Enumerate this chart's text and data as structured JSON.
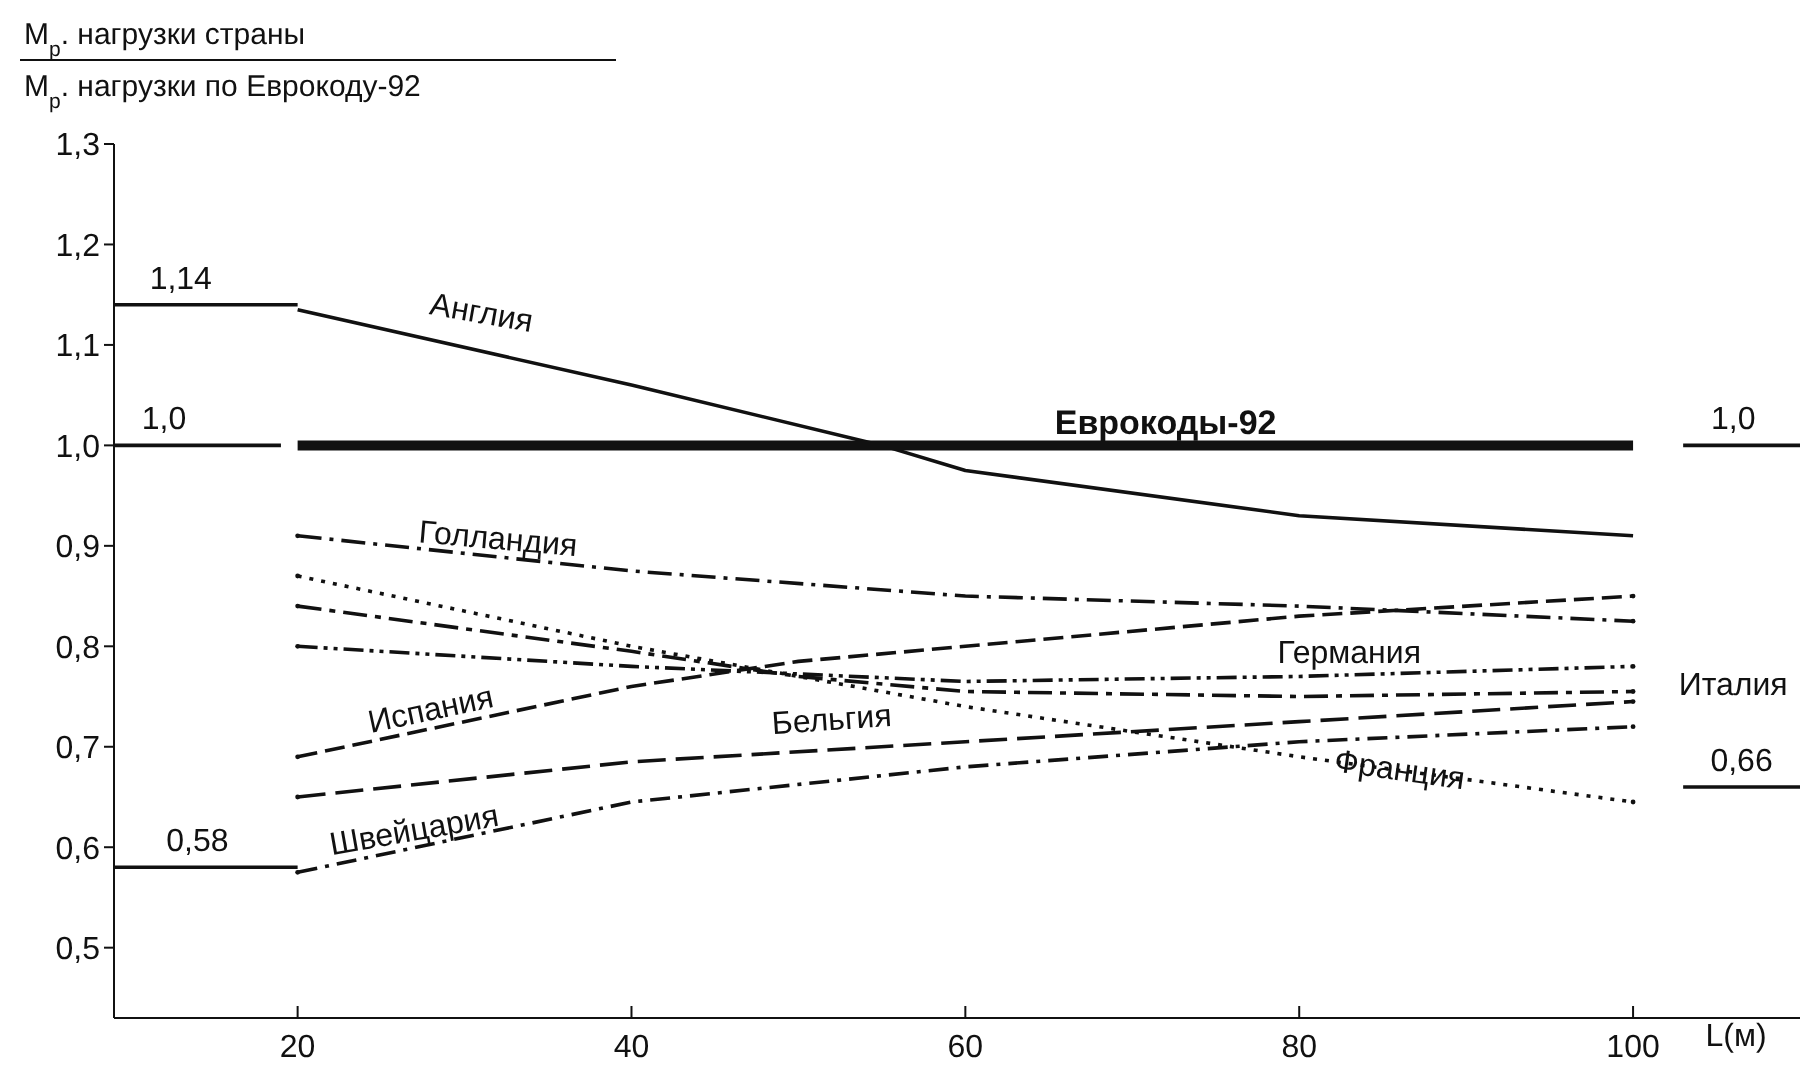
{
  "chart_data": {
    "type": "line",
    "title": "M$_{р}$. нагрузки страны",
    "subtitle": "M$_{р}$. нагрузки по Еврокоду-92",
    "xlabel": "L(м)",
    "xlim": [
      9,
      110
    ],
    "xticks": [
      20,
      40,
      60,
      80,
      100
    ],
    "ylim": [
      0.43,
      1.3
    ],
    "yticks": [
      {
        "value": 0.5,
        "label": "0,5"
      },
      {
        "value": 0.6,
        "label": "0,6"
      },
      {
        "value": 0.7,
        "label": "0,7"
      },
      {
        "value": 0.8,
        "label": "0,8"
      },
      {
        "value": 0.9,
        "label": "0,9"
      },
      {
        "value": 1.0,
        "label": "1,0"
      },
      {
        "value": 1.1,
        "label": "1,1"
      },
      {
        "value": 1.2,
        "label": "1,2"
      },
      {
        "value": 1.3,
        "label": "1,3"
      }
    ],
    "marker": "none",
    "series": [
      {
        "name": "Англия",
        "color": "#111111",
        "line_style": "solid",
        "x": [
          20,
          40,
          55,
          60,
          80,
          100
        ],
        "values": [
          1.135,
          1.06,
          1.0,
          0.975,
          0.93,
          0.91
        ]
      },
      {
        "name": "Еврокоды-92",
        "color": "#111111",
        "line_style": "solid",
        "x": [
          20,
          100
        ],
        "values": [
          1.0,
          1.0
        ]
      },
      {
        "name": "Голландия",
        "color": "#111111",
        "line_style": "dashed",
        "x": [
          20,
          40,
          60,
          80,
          100
        ],
        "values": [
          0.91,
          0.875,
          0.85,
          0.84,
          0.825
        ]
      },
      {
        "name": "Испания",
        "color": "#111111",
        "line_style": "dashed",
        "x": [
          20,
          40,
          50,
          60,
          80,
          100
        ],
        "values": [
          0.69,
          0.76,
          0.785,
          0.8,
          0.83,
          0.85
        ]
      },
      {
        "name": "Германия",
        "color": "#111111",
        "line_style": "dashed",
        "x": [
          20,
          40,
          60,
          80,
          100
        ],
        "values": [
          0.8,
          0.78,
          0.765,
          0.77,
          0.78
        ]
      },
      {
        "name": "Италия",
        "color": "#111111",
        "line_style": "dashed",
        "x": [
          20,
          40,
          50,
          60,
          80,
          100
        ],
        "values": [
          0.84,
          0.795,
          0.77,
          0.755,
          0.75,
          0.755
        ]
      },
      {
        "name": "Бельгия",
        "color": "#111111",
        "line_style": "dashed",
        "x": [
          20,
          40,
          60,
          80,
          100
        ],
        "values": [
          0.65,
          0.685,
          0.705,
          0.725,
          0.745
        ]
      },
      {
        "name": "Швейцария",
        "color": "#111111",
        "line_style": "dashed",
        "x": [
          20,
          40,
          60,
          80,
          100
        ],
        "values": [
          0.575,
          0.645,
          0.68,
          0.705,
          0.72
        ]
      },
      {
        "name": "Франция",
        "color": "#111111",
        "line_style": "dotted",
        "x": [
          20,
          40,
          50,
          60,
          80,
          100
        ],
        "values": [
          0.87,
          0.8,
          0.77,
          0.74,
          0.69,
          0.645
        ]
      },
      {
        "color": "#111111",
        "line_style": "solid",
        "x": [
          9,
          20
        ],
        "values": [
          1.14,
          1.14
        ]
      },
      {
        "color": "#111111",
        "line_style": "solid",
        "x": [
          9,
          19
        ],
        "values": [
          1.0,
          1.0
        ]
      },
      {
        "color": "#111111",
        "line_style": "solid",
        "x": [
          9,
          20
        ],
        "values": [
          0.58,
          0.58
        ]
      },
      {
        "color": "#111111",
        "line_style": "solid",
        "x": [
          103,
          110
        ],
        "values": [
          1.0,
          1.0
        ]
      },
      {
        "color": "#111111",
        "line_style": "solid",
        "x": [
          103,
          110
        ],
        "values": [
          0.66,
          0.66
        ]
      }
    ],
    "annotations": [
      {
        "text": "1,14",
        "x": 13,
        "y": 1.14
      },
      {
        "text": "1,0",
        "x": 12,
        "y": 1.0
      },
      {
        "text": "0,58",
        "x": 14,
        "y": 0.58
      },
      {
        "text": "1,0",
        "x": 106,
        "y": 1.0
      },
      {
        "text": "0,66",
        "x": 106.5,
        "y": 0.66
      }
    ]
  }
}
